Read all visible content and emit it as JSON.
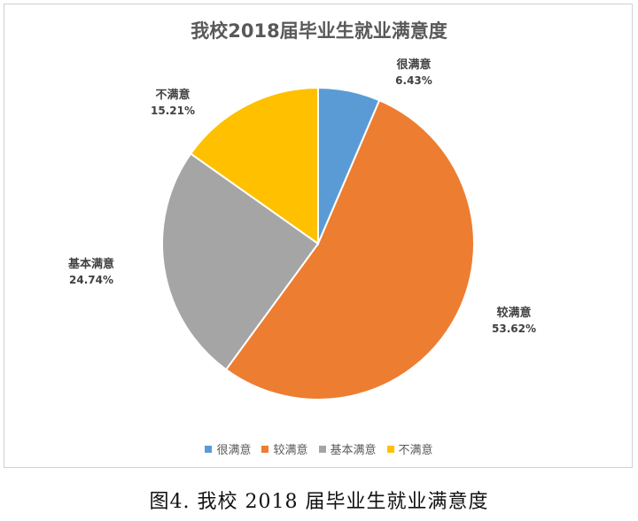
{
  "chart_data": {
    "type": "pie",
    "title": "我校2018届毕业生就业满意度",
    "slices": [
      {
        "label": "很满意",
        "value": 6.43,
        "value_label": "6.43%",
        "color": "#5B9BD5"
      },
      {
        "label": "较满意",
        "value": 53.62,
        "value_label": "53.62%",
        "color": "#ED7D31"
      },
      {
        "label": "基本满意",
        "value": 24.74,
        "value_label": "24.74%",
        "color": "#A5A5A5"
      },
      {
        "label": "不满意",
        "value": 15.21,
        "value_label": "15.21%",
        "color": "#FFC000"
      }
    ],
    "legend_placement": "bottom"
  },
  "caption": "图4. 我校 2018 届毕业生就业满意度"
}
